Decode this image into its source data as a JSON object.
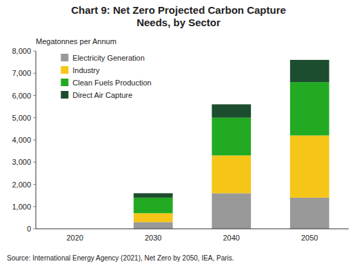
{
  "chart_data": {
    "type": "bar",
    "stacked": true,
    "title": "Chart 9: Net Zero Projected Carbon Capture\nNeeds, by Sector",
    "y_label": "Megatonnes per Annum",
    "source": "Source: International Energy Agency (2021), Net Zero by 2050, IEA,  Paris.",
    "categories": [
      "2020",
      "2030",
      "2040",
      "2050"
    ],
    "series": [
      {
        "name": "Electricity Generation",
        "color": "#999999",
        "values": [
          0,
          300,
          1600,
          1400
        ]
      },
      {
        "name": "Industry",
        "color": "#F5C518",
        "values": [
          0,
          400,
          1700,
          2800
        ]
      },
      {
        "name": "Clean Fuels Production",
        "color": "#22AA22",
        "values": [
          0,
          700,
          1700,
          2400
        ]
      },
      {
        "name": "Direct Air Capture",
        "color": "#1B4D2E",
        "values": [
          0,
          200,
          600,
          1000
        ]
      }
    ],
    "ylim": [
      0,
      8000
    ],
    "yticks": [
      0,
      {
        "value": 1000,
        "label": "1,000"
      },
      {
        "value": 2000,
        "label": "2,000"
      },
      {
        "value": 3000,
        "label": "3,000"
      },
      {
        "value": 4000,
        "label": "4,000"
      },
      {
        "value": 5000,
        "label": "5,000"
      },
      {
        "value": 6000,
        "label": "6,000"
      },
      {
        "value": 7000,
        "label": "7,000"
      },
      {
        "value": 8000,
        "label": "8,000"
      }
    ],
    "grid": false,
    "legend": "upper left"
  }
}
